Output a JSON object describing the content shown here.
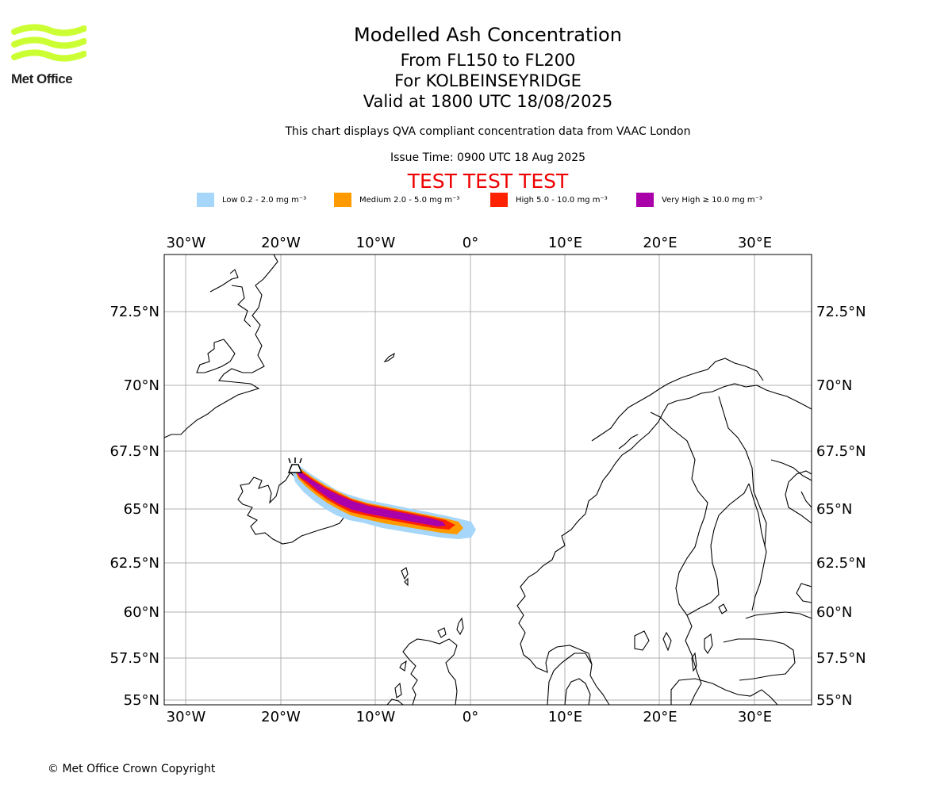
{
  "logo": {
    "text": "Met Office",
    "color": "#ccff33"
  },
  "titles": {
    "main": "Modelled Ash Concentration",
    "levels": "From FL150 to FL200",
    "location": "For KOLBEINSEYRIDGE",
    "valid": "Valid at 1800 UTC 18/08/2025",
    "description": "This chart displays QVA compliant concentration data from VAAC London",
    "issue": "Issue Time: 0900 UTC 18 Aug 2025",
    "test_banner": "TEST TEST TEST"
  },
  "legend": [
    {
      "label": "Low 0.2 - 2.0 mg m⁻³",
      "color": "#a6d6fa"
    },
    {
      "label": "Medium 2.0 - 5.0 mg m⁻³",
      "color": "#ff9b00"
    },
    {
      "label": "High 5.0 - 10.0 mg m⁻³",
      "color": "#ff2200"
    },
    {
      "label": "Very High ≥ 10.0 mg m⁻³",
      "color": "#aa00aa"
    }
  ],
  "map": {
    "lon_range": [
      -32.5,
      36
    ],
    "lat_range": [
      54.7,
      74.5
    ],
    "lon_ticks": [
      {
        "value": -30,
        "label": "30°W"
      },
      {
        "value": -20,
        "label": "20°W"
      },
      {
        "value": -10,
        "label": "10°W"
      },
      {
        "value": 0,
        "label": "0°"
      },
      {
        "value": 10,
        "label": "10°E"
      },
      {
        "value": 20,
        "label": "20°E"
      },
      {
        "value": 30,
        "label": "30°E"
      }
    ],
    "lat_ticks": [
      {
        "value": 72.5,
        "label": "72.5°N"
      },
      {
        "value": 70,
        "label": "70°N"
      },
      {
        "value": 67.5,
        "label": "67.5°N"
      },
      {
        "value": 65,
        "label": "65°N"
      },
      {
        "value": 62.5,
        "label": "62.5°N"
      },
      {
        "value": 60,
        "label": "60°N"
      },
      {
        "value": 57.5,
        "label": "57.5°N"
      },
      {
        "value": 55,
        "label": "55°N"
      }
    ],
    "grid": true,
    "volcano": {
      "name": "KOLBEINSEYRIDGE",
      "lon": -18.2,
      "lat": 66.9
    }
  },
  "copyright": "© Met Office Crown Copyright"
}
